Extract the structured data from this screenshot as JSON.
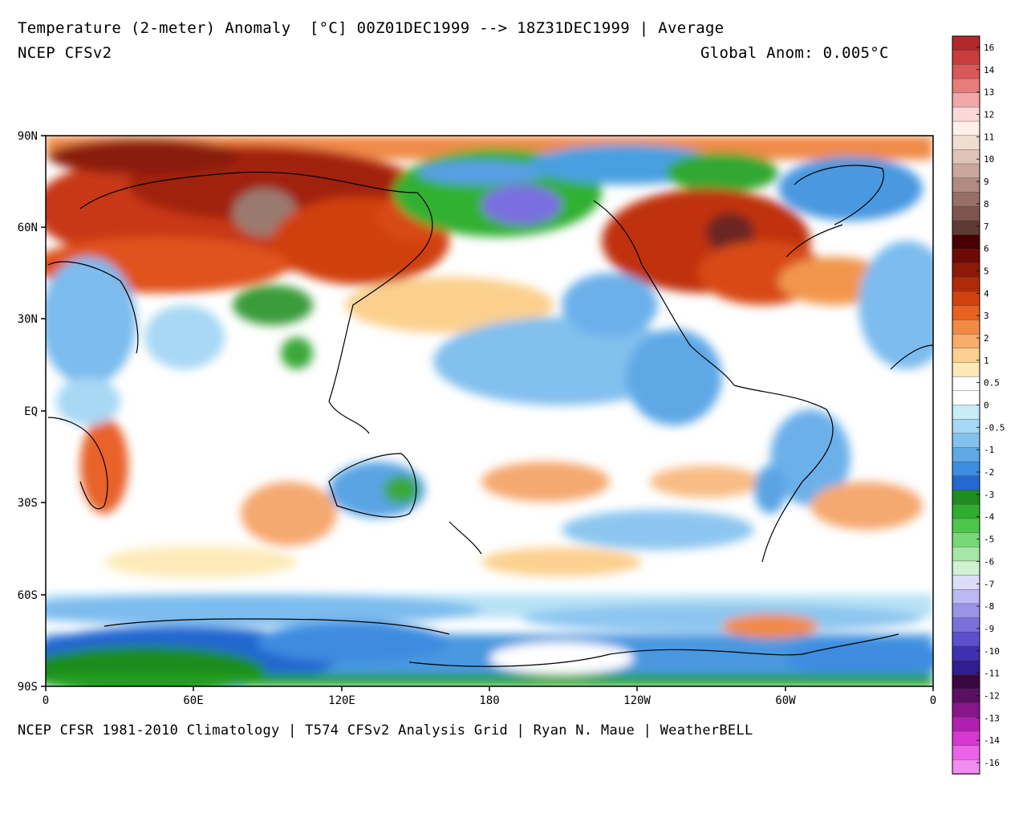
{
  "header": {
    "title": "Temperature (2-meter) Anomaly  [°C] 00Z01DEC1999 --> 18Z31DEC1999 | Average",
    "model": "NCEP CFSv2",
    "global_anom": "Global Anom: 0.005°C"
  },
  "footer": {
    "credit": "NCEP CFSR 1981-2010 Climatology | T574 CFSv2 Analysis Grid | Ryan N. Maue | WeatherBELL"
  },
  "map": {
    "lat_labels": [
      "90N",
      "60N",
      "30N",
      "EQ",
      "30S",
      "60S",
      "90S"
    ],
    "lon_labels": [
      "0",
      "60E",
      "120E",
      "180",
      "120W",
      "60W",
      "0"
    ]
  },
  "colorbar": {
    "labels": [
      "16",
      "14",
      "13",
      "12",
      "11",
      "10",
      "9",
      "8",
      "7",
      "6",
      "5",
      "4",
      "3",
      "2",
      "1",
      "0.5",
      "0",
      "-0.5",
      "-1",
      "-2",
      "-3",
      "-4",
      "-5",
      "-6",
      "-7",
      "-8",
      "-9",
      "-10",
      "-11",
      "-12",
      "-13",
      "-14",
      "-16"
    ],
    "colors": [
      "#b3282d",
      "#c83c3f",
      "#d9585a",
      "#e67c7c",
      "#f2a8a8",
      "#fbd8d8",
      "#fff0ea",
      "#efddd2",
      "#dfc4b8",
      "#c9a89b",
      "#b08c80",
      "#967066",
      "#7c564e",
      "#5e3a34",
      "#4a0000",
      "#6e0a05",
      "#8e1a08",
      "#b02a0a",
      "#d2420e",
      "#e8621f",
      "#f28a45",
      "#f8ad6b",
      "#fcd090",
      "#fde9b6",
      "#ffffff",
      "#ffffff",
      "#c8ecf8",
      "#a6d8f4",
      "#84c2ee",
      "#5ea8e6",
      "#3c8ce0",
      "#2468d0",
      "#1e8c1e",
      "#2fae2f",
      "#4cc64c",
      "#78d878",
      "#a6e6a6",
      "#d0f2d0",
      "#dcdcf8",
      "#bcb8f2",
      "#9a94e8",
      "#7a70dc",
      "#5c50cc",
      "#4030b0",
      "#301e90",
      "#3a0840",
      "#5a1060",
      "#86168a",
      "#b020b0",
      "#d438d0",
      "#ea62e8",
      "#f28cf0"
    ]
  }
}
